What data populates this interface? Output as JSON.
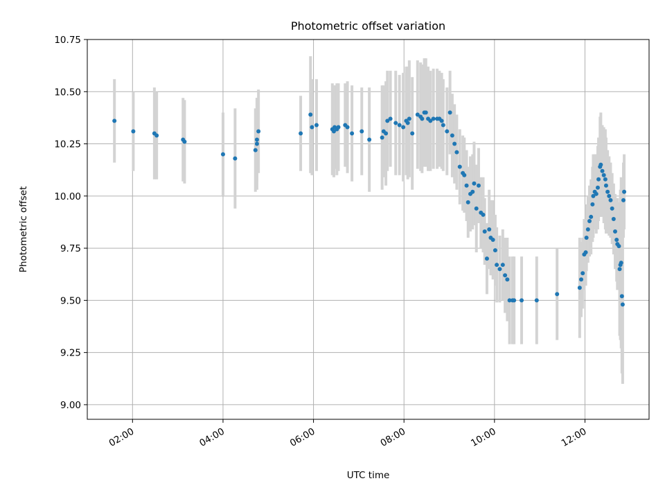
{
  "chart_data": {
    "type": "scatter",
    "title": "Photometric offset variation",
    "xlabel": "UTC time",
    "ylabel": "Photometric offset",
    "xlim": [
      "01:00",
      "13:25"
    ],
    "ylim": [
      8.93,
      10.75
    ],
    "x_ticks": [
      "02:00",
      "04:00",
      "06:00",
      "08:00",
      "10:00",
      "12:00"
    ],
    "y_ticks": [
      "9.00",
      "9.25",
      "9.50",
      "9.75",
      "10.00",
      "10.25",
      "10.50",
      "10.75"
    ],
    "grid": true,
    "colors": {
      "points": "#1f77b4",
      "errorbars": "#d3d3d3",
      "grid": "#b0b0b0"
    },
    "series": [
      {
        "x": [
          "01:36",
          "02:01",
          "02:29",
          "02:32",
          "03:07",
          "03:09",
          "04:00",
          "04:16",
          "04:43",
          "04:45",
          "04:45",
          "04:47",
          "05:43",
          "05:56",
          "05:58",
          "06:04",
          "06:25",
          "06:27",
          "06:28",
          "06:31",
          "06:33",
          "06:42",
          "06:45",
          "06:51",
          "07:04",
          "07:14",
          "07:31",
          "07:33",
          "07:36",
          "07:38",
          "07:42",
          "07:49",
          "07:54",
          "07:59",
          "08:03",
          "08:05",
          "08:07",
          "08:11",
          "08:18",
          "08:22",
          "08:24",
          "08:27",
          "08:29",
          "08:32",
          "08:35",
          "08:39",
          "08:44",
          "08:47",
          "08:50",
          "08:52",
          "08:57",
          "09:01",
          "09:04",
          "09:07",
          "09:10",
          "09:14",
          "09:18",
          "09:20",
          "09:23",
          "09:25",
          "09:28",
          "09:31",
          "09:33",
          "09:36",
          "09:39",
          "09:42",
          "09:45",
          "09:47",
          "09:50",
          "09:53",
          "09:55",
          "09:58",
          "10:01",
          "10:03",
          "10:07",
          "10:11",
          "10:14",
          "10:17",
          "10:20",
          "10:24",
          "10:26",
          "10:36",
          "10:56",
          "11:23",
          "11:53",
          "11:55",
          "11:57",
          "11:59",
          "12:01",
          "12:02",
          "12:04",
          "12:06",
          "12:08",
          "12:10",
          "12:11",
          "12:13",
          "12:15",
          "12:17",
          "12:18",
          "12:20",
          "12:21",
          "12:23",
          "12:25",
          "12:27",
          "12:28",
          "12:30",
          "12:32",
          "12:34",
          "12:36",
          "12:38",
          "12:40",
          "12:42",
          "12:43",
          "12:45",
          "12:46",
          "12:47",
          "12:48",
          "12:49",
          "12:50",
          "12:51",
          "12:52"
        ],
        "y": [
          10.36,
          10.31,
          10.3,
          10.29,
          10.27,
          10.26,
          10.2,
          10.18,
          10.22,
          10.25,
          10.27,
          10.31,
          10.3,
          10.39,
          10.33,
          10.34,
          10.32,
          10.31,
          10.33,
          10.32,
          10.33,
          10.34,
          10.33,
          10.3,
          10.31,
          10.27,
          10.28,
          10.31,
          10.3,
          10.36,
          10.37,
          10.35,
          10.34,
          10.33,
          10.36,
          10.35,
          10.37,
          10.3,
          10.39,
          10.38,
          10.37,
          10.4,
          10.4,
          10.37,
          10.36,
          10.37,
          10.37,
          10.37,
          10.36,
          10.34,
          10.31,
          10.4,
          10.29,
          10.25,
          10.21,
          10.14,
          10.11,
          10.1,
          10.05,
          9.97,
          10.01,
          10.02,
          10.06,
          9.94,
          10.05,
          9.92,
          9.91,
          9.83,
          9.7,
          9.84,
          9.8,
          9.79,
          9.74,
          9.67,
          9.65,
          9.67,
          9.62,
          9.6,
          9.5,
          9.5,
          9.5,
          9.5,
          9.5,
          9.53,
          9.56,
          9.6,
          9.63,
          9.72,
          9.73,
          9.8,
          9.84,
          9.88,
          9.9,
          9.96,
          10.0,
          10.02,
          10.01,
          10.04,
          10.08,
          10.14,
          10.15,
          10.12,
          10.1,
          10.08,
          10.05,
          10.02,
          10.0,
          9.98,
          9.94,
          9.89,
          9.83,
          9.79,
          9.77,
          9.76,
          9.65,
          9.67,
          9.68,
          9.52,
          9.48,
          9.98,
          10.02
        ],
        "err": [
          0.2,
          0.19,
          0.22,
          0.21,
          0.2,
          0.2,
          0.2,
          0.24,
          0.2,
          0.22,
          0.2,
          0.2,
          0.18,
          0.28,
          0.23,
          0.22,
          0.22,
          0.22,
          0.2,
          0.22,
          0.21,
          0.2,
          0.22,
          0.23,
          0.21,
          0.25,
          0.25,
          0.22,
          0.25,
          0.24,
          0.23,
          0.25,
          0.24,
          0.26,
          0.26,
          0.27,
          0.28,
          0.27,
          0.26,
          0.26,
          0.26,
          0.26,
          0.26,
          0.25,
          0.24,
          0.24,
          0.24,
          0.23,
          0.23,
          0.22,
          0.21,
          0.2,
          0.2,
          0.19,
          0.18,
          0.18,
          0.18,
          0.18,
          0.17,
          0.17,
          0.18,
          0.18,
          0.2,
          0.21,
          0.18,
          0.17,
          0.18,
          0.16,
          0.17,
          0.19,
          0.18,
          0.19,
          0.17,
          0.18,
          0.16,
          0.17,
          0.18,
          0.2,
          0.21,
          0.21,
          0.21,
          0.21,
          0.21,
          0.22,
          0.24,
          0.18,
          0.17,
          0.17,
          0.16,
          0.16,
          0.16,
          0.17,
          0.18,
          0.18,
          0.2,
          0.18,
          0.19,
          0.2,
          0.2,
          0.24,
          0.25,
          0.22,
          0.23,
          0.24,
          0.23,
          0.2,
          0.19,
          0.18,
          0.17,
          0.17,
          0.18,
          0.2,
          0.22,
          0.19,
          0.32,
          0.36,
          0.41,
          0.37,
          0.38,
          0.18,
          0.18
        ]
      }
    ]
  }
}
